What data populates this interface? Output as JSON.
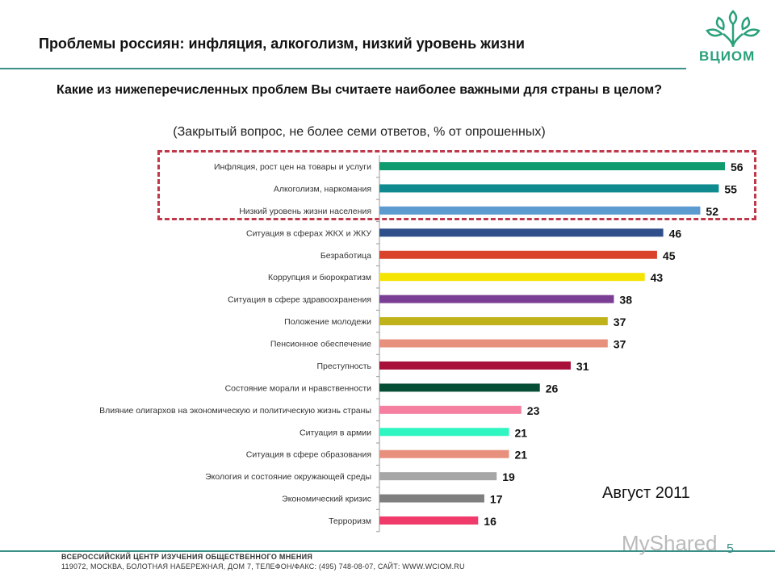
{
  "title": "Проблемы россиян: инфляция, алкоголизм, низкий уровень жизни",
  "question": "Какие из нижеперечисленных проблем Вы считаете наиболее важными для страны в целом?",
  "note": "(Закрытый вопрос, не более семи ответов, % от опрошенных)",
  "date": "Август 2011",
  "logo": "ВЦИОМ",
  "footer": {
    "line1": "ВСЕРОССИЙСКИЙ ЦЕНТР ИЗУЧЕНИЯ ОБЩЕСТВЕННОГО МНЕНИЯ",
    "line2": "119072, МОСКВА, БОЛОТНАЯ НАБЕРЕЖНАЯ, ДОМ 7, ТЕЛЕФОН/ФАКС: (495) 748-08-07, САЙТ: WWW.WCIOM.RU"
  },
  "watermark": "MyShared",
  "page_number": "5",
  "chart_data": {
    "type": "bar",
    "orientation": "horizontal",
    "categories": [
      "Инфляция, рост цен на товары и услуги",
      "Алкоголизм, наркомания",
      "Низкий уровень жизни населения",
      "Ситуация в сферах ЖКХ и ЖКУ",
      "Безработица",
      "Коррупция и бюрократизм",
      "Ситуация в сфере здравоохранения",
      "Положение молодежи",
      "Пенсионное обеспечение",
      "Преступность",
      "Состояние морали и нравственности",
      "Влияние олигархов на экономическую и политическую жизнь страны",
      "Ситуация в армии",
      "Ситуация в сфере образования",
      "Экология и состояние окружающей среды",
      "Экономический кризис",
      "Терроризм"
    ],
    "values": [
      56,
      55,
      52,
      46,
      45,
      43,
      38,
      37,
      37,
      31,
      26,
      23,
      21,
      21,
      19,
      17,
      16
    ],
    "colors": [
      "#0f9b6e",
      "#0f8a8e",
      "#5b9bd0",
      "#2f4f8a",
      "#d9432b",
      "#f5e400",
      "#7a3f94",
      "#bfb21a",
      "#e8907e",
      "#a8103a",
      "#064d36",
      "#f47fa0",
      "#2ff5c0",
      "#e8907e",
      "#a6a6a6",
      "#7f7f7f",
      "#f03a6a"
    ],
    "highlighted": [
      0,
      1,
      2
    ],
    "xlim": [
      0,
      56
    ]
  }
}
